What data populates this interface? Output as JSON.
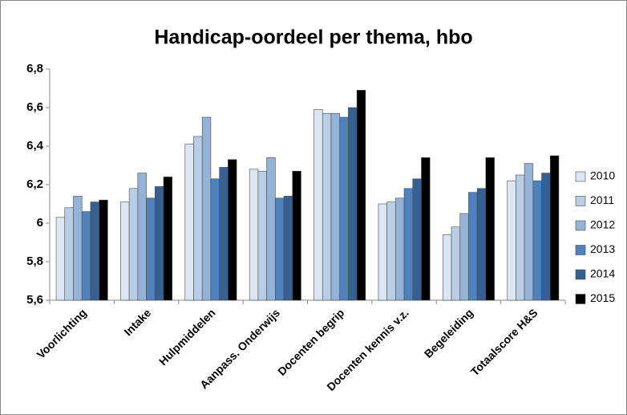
{
  "chart_data": {
    "type": "bar",
    "title": "Handicap-oordeel per thema, hbo",
    "categories": [
      "Voorlichting",
      "Intake",
      "Hulpmiddelen",
      "Aanpass. Onderwijs",
      "Docenten begrip",
      "Docenten kennis v.z.",
      "Begeleiding",
      "Totaalscore H&S"
    ],
    "series": [
      {
        "name": "2010",
        "color": "#dce6f2",
        "values": [
          6.03,
          6.11,
          6.41,
          6.28,
          6.59,
          6.1,
          5.94,
          6.22
        ]
      },
      {
        "name": "2011",
        "color": "#b9cde5",
        "values": [
          6.08,
          6.18,
          6.45,
          6.27,
          6.57,
          6.11,
          5.98,
          6.25
        ]
      },
      {
        "name": "2012",
        "color": "#95b3d7",
        "values": [
          6.14,
          6.26,
          6.55,
          6.34,
          6.57,
          6.13,
          6.05,
          6.31
        ]
      },
      {
        "name": "2013",
        "color": "#4f81bd",
        "values": [
          6.06,
          6.13,
          6.23,
          6.13,
          6.55,
          6.18,
          6.16,
          6.22
        ]
      },
      {
        "name": "2014",
        "color": "#376092",
        "values": [
          6.11,
          6.19,
          6.29,
          6.14,
          6.6,
          6.23,
          6.18,
          6.26
        ]
      },
      {
        "name": "2015",
        "color": "#000000",
        "values": [
          6.12,
          6.24,
          6.33,
          6.27,
          6.69,
          6.34,
          6.34,
          6.35
        ]
      }
    ],
    "ylim": [
      5.6,
      6.8
    ],
    "yticks": [
      {
        "value": 5.6,
        "label": "5,6"
      },
      {
        "value": 5.8,
        "label": "5,8"
      },
      6,
      {
        "value": 6.2,
        "label": "6,2"
      },
      {
        "value": 6.4,
        "label": "6,4"
      },
      {
        "value": 6.6,
        "label": "6,6"
      },
      {
        "value": 6.8,
        "label": "6,8"
      }
    ],
    "legend": "right"
  }
}
